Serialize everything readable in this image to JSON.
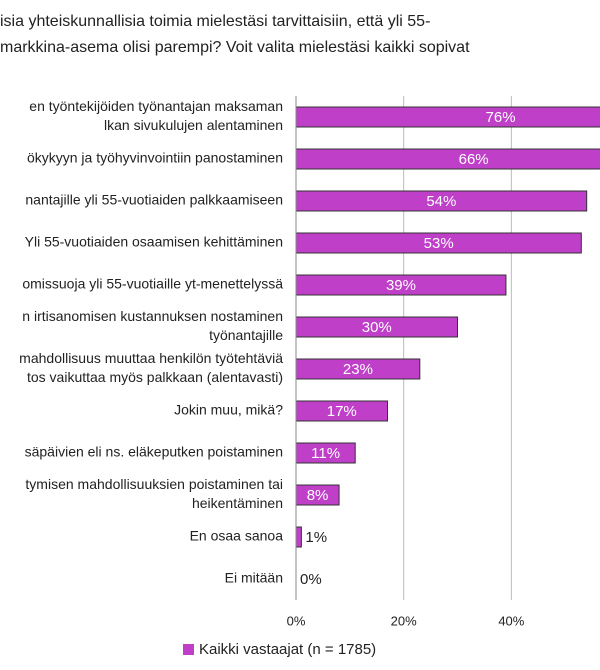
{
  "chart_data": {
    "type": "bar",
    "orientation": "horizontal",
    "title": [
      "isia yhteiskunnallisia toimia mielestäsi tarvittaisiin, että yli 55-",
      "markkina-asema olisi parempi? Voit valita mielestäsi kaikki sopivat"
    ],
    "categories": [
      [
        "en työntekijöiden työnantajan maksaman",
        "lkan sivukulujen alentaminen"
      ],
      [
        "ökykyyn ja työhyvinvointiin panostaminen"
      ],
      [
        "nantajille yli 55-vuotiaiden palkkaamiseen"
      ],
      [
        "Yli 55-vuotiaiden osaamisen kehittäminen"
      ],
      [
        "omissuoja yli 55-vuotiaille yt-menettelyssä"
      ],
      [
        "n irtisanomisen kustannuksen nostaminen",
        "työnantajille"
      ],
      [
        "mahdollisuus muuttaa henkilön työtehtäviä",
        "tos vaikuttaa myös palkkaan (alentavasti)"
      ],
      [
        "Jokin muu, mikä?"
      ],
      [
        "säpäivien eli ns. eläkeputken poistaminen"
      ],
      [
        "tymisen mahdollisuuksien poistaminen tai",
        "heikentäminen"
      ],
      [
        "En osaa sanoa"
      ],
      [
        "Ei mitään"
      ]
    ],
    "series": [
      {
        "name": "Kaikki vastaajat (n = 1785)",
        "color": "#bf3fc9",
        "values": [
          76,
          66,
          54,
          53,
          39,
          30,
          23,
          17,
          11,
          8,
          1,
          0
        ],
        "value_labels": [
          "76%",
          "66%",
          "54%",
          "53%",
          "39%",
          "30%",
          "23%",
          "17%",
          "11%",
          "8%",
          "1%",
          "0%"
        ]
      }
    ],
    "xlim": [
      0,
      60
    ],
    "xticks": [
      {
        "value": 0,
        "label": "0%"
      },
      {
        "value": 20,
        "label": "20%"
      },
      {
        "value": 40,
        "label": "40%"
      }
    ],
    "grid": true
  }
}
